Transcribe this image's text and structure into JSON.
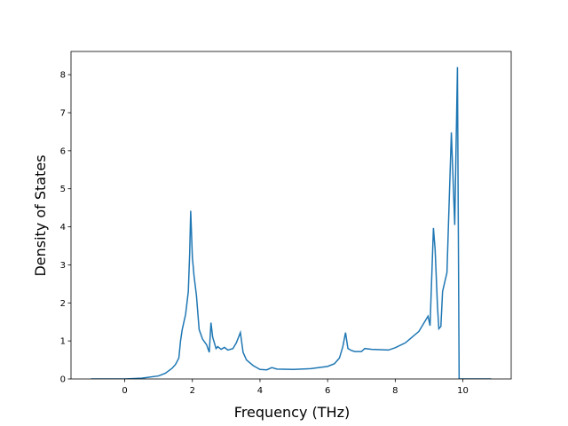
{
  "chart_data": {
    "type": "line",
    "xlabel": "Frequency (THz)",
    "ylabel": "Density of States",
    "x": [
      -1,
      0,
      0.5,
      1.0,
      1.2,
      1.4,
      1.5,
      1.6,
      1.65,
      1.7,
      1.8,
      1.88,
      1.92,
      1.95,
      2.0,
      2.05,
      2.12,
      2.2,
      2.3,
      2.42,
      2.5,
      2.55,
      2.6,
      2.7,
      2.75,
      2.85,
      2.95,
      3.05,
      3.2,
      3.3,
      3.42,
      3.5,
      3.6,
      3.8,
      4.0,
      4.2,
      4.35,
      4.5,
      5.0,
      5.5,
      6.0,
      6.2,
      6.35,
      6.45,
      6.53,
      6.6,
      6.7,
      6.8,
      7.0,
      7.1,
      7.3,
      7.8,
      8.0,
      8.3,
      8.5,
      8.7,
      8.97,
      9.03,
      9.13,
      9.18,
      9.25,
      9.29,
      9.35,
      9.4,
      9.53,
      9.66,
      9.76,
      9.84,
      9.89,
      10.84
    ],
    "values": [
      0,
      0.0,
      0.02,
      0.08,
      0.15,
      0.28,
      0.38,
      0.55,
      1.0,
      1.3,
      1.7,
      2.3,
      3.3,
      4.42,
      3.2,
      2.7,
      2.2,
      1.3,
      1.05,
      0.9,
      0.7,
      1.48,
      1.1,
      0.8,
      0.85,
      0.78,
      0.83,
      0.76,
      0.8,
      0.95,
      1.22,
      0.7,
      0.5,
      0.35,
      0.25,
      0.24,
      0.3,
      0.26,
      0.25,
      0.27,
      0.33,
      0.4,
      0.55,
      0.85,
      1.22,
      0.8,
      0.75,
      0.72,
      0.72,
      0.8,
      0.78,
      0.76,
      0.82,
      0.95,
      1.1,
      1.25,
      1.65,
      1.4,
      3.97,
      3.4,
      1.9,
      1.32,
      1.38,
      2.3,
      2.8,
      6.48,
      4.05,
      8.2,
      0,
      0
    ],
    "color": "#1f77b4",
    "xlim": [
      -1.59,
      11.43
    ],
    "ylim": [
      0,
      8.61
    ],
    "xticks": [
      0,
      2,
      4,
      6,
      8,
      10
    ],
    "yticks": [
      0,
      1,
      2,
      3,
      4,
      5,
      6,
      7,
      8
    ]
  }
}
